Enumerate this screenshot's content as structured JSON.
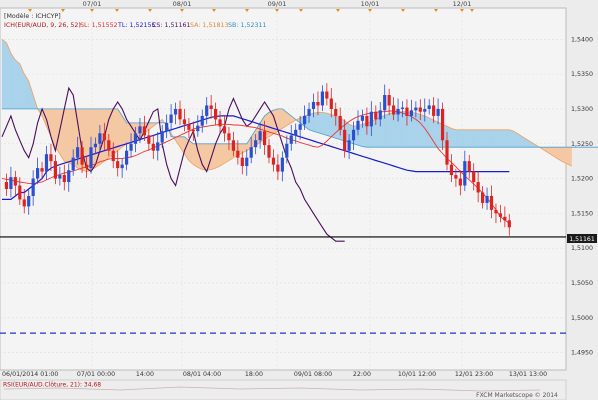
{
  "header": {
    "model_label": "[Modèle : ICHCYP]",
    "indicator_name": "ICH(EUR/AUD, 9, 26, 52)",
    "sl": "SL: 1,51552",
    "tl": "TL: 1,52155",
    "cs": "CS: 1,51161",
    "sa": "SA: 1,51813",
    "sb": "SB: 1,52311"
  },
  "top_dates": [
    "07/01",
    "08/01",
    "09/01",
    "10/01",
    "12/01"
  ],
  "price_ticks": [
    "1,5400",
    "1,5350",
    "1,5300",
    "1,5250",
    "1,5200",
    "1,5150",
    "1,5100",
    "1,5050",
    "1,5000",
    "1,4950"
  ],
  "price_badge": "1,51161",
  "time_ticks": [
    "06/01/2014 01:00",
    "07/01 00:00",
    "14:00",
    "08/01 04:00",
    "18:00",
    "09/01 08:00",
    "22:00",
    "10/01 12:00",
    "12/01 23:00",
    "13/01 13:00"
  ],
  "rsi_label": "RSI(EUR/AUD.Clôture, 21): 34,68",
  "footer": "FXCM Marketscope © 2014",
  "colors": {
    "background": "#ececec",
    "bull_candle": "#2a4fd0",
    "bear_candle": "#dd2222",
    "tenkan": "#ee3333",
    "kijun": "#1a1ad0",
    "chikou": "#4a0f5a",
    "senkou_a": "#f0a060",
    "senkou_b": "#4aa0d0",
    "cloud_bearish": "#f5c8a4",
    "cloud_bullish": "#a9d3ea",
    "support_dashed": "#2233cc",
    "price_line": "#000000"
  },
  "chart_data": {
    "type": "candlestick",
    "symbol": "EUR/AUD",
    "title": "ICH(EUR/AUD, 9, 26, 52)",
    "ylim": [
      1.4925,
      1.5445
    ],
    "x_tick_labels": [
      "06/01/2014 01:00",
      "07/01 00:00",
      "14:00",
      "08/01 04:00",
      "18:00",
      "09/01 08:00",
      "22:00",
      "10/01 12:00",
      "12/01 23:00",
      "13/01 13:00"
    ],
    "current_price": 1.51161,
    "horizontal_lines": [
      {
        "value": 1.51161,
        "style": "solid"
      },
      {
        "value": 1.4978,
        "style": "dashed"
      }
    ],
    "candles_close": [
      1.5195,
      1.5185,
      1.5202,
      1.519,
      1.517,
      1.516,
      1.5175,
      1.52,
      1.5215,
      1.521,
      1.5235,
      1.5225,
      1.52,
      1.5205,
      1.5195,
      1.5212,
      1.523,
      1.5245,
      1.522,
      1.5215,
      1.5245,
      1.525,
      1.5265,
      1.5255,
      1.524,
      1.5225,
      1.5215,
      1.522,
      1.524,
      1.525,
      1.5265,
      1.5275,
      1.5262,
      1.525,
      1.524,
      1.5252,
      1.5268,
      1.528,
      1.5292,
      1.53,
      1.5285,
      1.5278,
      1.527,
      1.5268,
      1.5276,
      1.529,
      1.5305,
      1.53,
      1.5285,
      1.5275,
      1.5265,
      1.5255,
      1.524,
      1.523,
      1.5218,
      1.523,
      1.5245,
      1.5255,
      1.5268,
      1.5248,
      1.523,
      1.522,
      1.521,
      1.523,
      1.525,
      1.5262,
      1.527,
      1.5278,
      1.529,
      1.53,
      1.531,
      1.5305,
      1.5325,
      1.5315,
      1.53,
      1.529,
      1.527,
      1.524,
      1.5255,
      1.527,
      1.5283,
      1.529,
      1.5275,
      1.5296,
      1.5285,
      1.5298,
      1.532,
      1.5305,
      1.5292,
      1.53,
      1.5302,
      1.529,
      1.5298,
      1.5302,
      1.5296,
      1.53,
      1.5305,
      1.529,
      1.53,
      1.5255,
      1.522,
      1.5205,
      1.52,
      1.519,
      1.5225,
      1.521,
      1.5195,
      1.518,
      1.5165,
      1.5175,
      1.5155,
      1.515,
      1.5145,
      1.514,
      1.513
    ],
    "tenkan_sen": [
      1.52,
      1.5199,
      1.5198,
      1.5196,
      1.5195,
      1.5194,
      1.5193,
      1.5193,
      1.5194,
      1.5195,
      1.5198,
      1.5201,
      1.5204,
      1.5206,
      1.5208,
      1.5209,
      1.5211,
      1.5213,
      1.5215,
      1.5217,
      1.5219,
      1.5221,
      1.5224,
      1.5226,
      1.5228,
      1.5229,
      1.5229,
      1.5229,
      1.523,
      1.5231,
      1.5233,
      1.5236,
      1.5239,
      1.5241,
      1.5244,
      1.5247,
      1.525,
      1.5253,
      1.5256,
      1.5259,
      1.5262,
      1.5265,
      1.5268,
      1.5271,
      1.5273,
      1.5274,
      1.5275,
      1.5276,
      1.5277,
      1.5278,
      1.5278,
      1.5278,
      1.5277,
      1.5277,
      1.5276,
      1.5275,
      1.5274,
      1.5273,
      1.5271,
      1.5269,
      1.5267,
      1.5265,
      1.5263,
      1.5261,
      1.5258,
      1.5256,
      1.5254,
      1.5252,
      1.525,
      1.5248,
      1.5246,
      1.5245,
      1.5248,
      1.5254,
      1.526,
      1.5266,
      1.5272,
      1.5277,
      1.5282,
      1.5286,
      1.5289,
      1.5291,
      1.5293,
      1.5294,
      1.5295,
      1.5296,
      1.5296,
      1.5297,
      1.5297,
      1.5296,
      1.5294,
      1.5292,
      1.5289,
      1.5285,
      1.528,
      1.5272,
      1.5263,
      1.5253,
      1.5243,
      1.5236,
      1.5229,
      1.5223,
      1.5217,
      1.521,
      1.5204,
      1.5198,
      1.5192,
      1.5186,
      1.5179,
      1.5172,
      1.5164,
      1.5155,
      1.5145,
      1.514,
      1.5136
    ],
    "kijun_sen": [
      1.517,
      1.517,
      1.517,
      1.5175,
      1.518,
      1.518,
      1.5185,
      1.519,
      1.5195,
      1.52,
      1.521,
      1.5215,
      1.5218,
      1.522,
      1.5222,
      1.5224,
      1.5226,
      1.5228,
      1.523,
      1.5232,
      1.5234,
      1.5236,
      1.5238,
      1.524,
      1.5242,
      1.5244,
      1.5246,
      1.5248,
      1.525,
      1.5252,
      1.5254,
      1.5256,
      1.5258,
      1.526,
      1.5262,
      1.5264,
      1.5266,
      1.5268,
      1.527,
      1.5272,
      1.5274,
      1.5276,
      1.5278,
      1.528,
      1.5282,
      1.5284,
      1.5286,
      1.5288,
      1.5289,
      1.529,
      1.529,
      1.529,
      1.529,
      1.5288,
      1.5286,
      1.5284,
      1.5282,
      1.528,
      1.5278,
      1.5276,
      1.5274,
      1.5272,
      1.527,
      1.5268,
      1.5266,
      1.5264,
      1.5262,
      1.526,
      1.5258,
      1.5256,
      1.5254,
      1.5252,
      1.525,
      1.5248,
      1.5246,
      1.5244,
      1.5242,
      1.524,
      1.5238,
      1.5236,
      1.5234,
      1.5232,
      1.523,
      1.5228,
      1.5226,
      1.5224,
      1.5222,
      1.522,
      1.5218,
      1.5216,
      1.5214,
      1.5212,
      1.5211,
      1.521,
      1.521,
      1.521,
      1.521,
      1.521,
      1.521,
      1.521,
      1.521,
      1.521,
      1.521,
      1.521,
      1.521,
      1.521,
      1.521,
      1.521,
      1.521,
      1.521,
      1.521,
      1.521,
      1.521,
      1.521,
      1.521
    ],
    "chikou_span": [
      1.526,
      1.5275,
      1.529,
      1.527,
      1.5255,
      1.524,
      1.523,
      1.525,
      1.528,
      1.53,
      1.5285,
      1.526,
      1.524,
      1.527,
      1.53,
      1.533,
      1.532,
      1.528,
      1.524,
      1.5215,
      1.521,
      1.522,
      1.524,
      1.526,
      1.5285,
      1.53,
      1.531,
      1.53,
      1.5285,
      1.5275,
      1.5265,
      1.5255,
      1.5268,
      1.5282,
      1.5296,
      1.53,
      1.525,
      1.522,
      1.52,
      1.519,
      1.5215,
      1.524,
      1.5255,
      1.5268,
      1.524,
      1.522,
      1.521,
      1.523,
      1.525,
      1.5265,
      1.5275,
      1.53,
      1.5315,
      1.53,
      1.5285,
      1.5275,
      1.528,
      1.529,
      1.53,
      1.531,
      1.53,
      1.529,
      1.527,
      1.525,
      1.523,
      1.5215,
      1.5195,
      1.5185,
      1.517,
      1.516,
      1.515,
      1.514,
      1.513,
      1.512,
      1.5115,
      1.511,
      1.511,
      1.511
    ],
    "senkou_a": [
      1.54,
      1.5395,
      1.538,
      1.537,
      1.5365,
      1.535,
      1.534,
      1.532,
      1.53,
      1.529,
      1.5275,
      1.526,
      1.5245,
      1.5235,
      1.5225,
      1.5222,
      1.522,
      1.5215,
      1.5212,
      1.521,
      1.5212,
      1.5216,
      1.522,
      1.5225,
      1.523,
      1.5235,
      1.524,
      1.5245,
      1.525,
      1.5252,
      1.5255,
      1.526,
      1.5265,
      1.527,
      1.5275,
      1.528,
      1.5285,
      1.5275,
      1.5265,
      1.5255,
      1.5245,
      1.5235,
      1.5226,
      1.522,
      1.5216,
      1.5213,
      1.5212,
      1.5213,
      1.5215,
      1.5218,
      1.5222,
      1.5226,
      1.523,
      1.5233,
      1.5237,
      1.524,
      1.5244,
      1.5248,
      1.5252,
      1.5256,
      1.526,
      1.5264,
      1.5268,
      1.5272,
      1.5276,
      1.528,
      1.5284,
      1.5287,
      1.529,
      1.5292,
      1.5294,
      1.5295,
      1.5295,
      1.5294,
      1.5292,
      1.529,
      1.5287,
      1.5283,
      1.5278,
      1.5275,
      1.5276,
      1.5278,
      1.528,
      1.5282,
      1.5285,
      1.5288,
      1.5291,
      1.5293,
      1.5295,
      1.5296,
      1.5296,
      1.5296,
      1.5295,
      1.5294,
      1.5292,
      1.529,
      1.5287,
      1.5284,
      1.5281,
      1.5278,
      1.5275,
      1.5272,
      1.527,
      1.527,
      1.527,
      1.527,
      1.527,
      1.527,
      1.527,
      1.527,
      1.527,
      1.527,
      1.527,
      1.527,
      1.527,
      1.5268,
      1.5264,
      1.526,
      1.5256,
      1.5252,
      1.5248,
      1.5244,
      1.524,
      1.5236,
      1.5232,
      1.5228,
      1.5224,
      1.5221,
      1.5218
    ],
    "senkou_b": [
      1.53,
      1.53,
      1.53,
      1.53,
      1.53,
      1.53,
      1.53,
      1.53,
      1.53,
      1.53,
      1.53,
      1.53,
      1.53,
      1.53,
      1.53,
      1.53,
      1.53,
      1.53,
      1.53,
      1.53,
      1.53,
      1.53,
      1.53,
      1.53,
      1.53,
      1.53,
      1.53,
      1.529,
      1.528,
      1.528,
      1.528,
      1.528,
      1.528,
      1.528,
      1.528,
      1.528,
      1.528,
      1.528,
      1.526,
      1.526,
      1.526,
      1.526,
      1.5255,
      1.525,
      1.525,
      1.525,
      1.525,
      1.525,
      1.525,
      1.525,
      1.525,
      1.525,
      1.525,
      1.525,
      1.525,
      1.525,
      1.526,
      1.527,
      1.528,
      1.529,
      1.5295,
      1.5298,
      1.53,
      1.53,
      1.5295,
      1.529,
      1.5285,
      1.528,
      1.5275,
      1.527,
      1.5268,
      1.5266,
      1.5264,
      1.5262,
      1.526,
      1.5258,
      1.5256,
      1.5254,
      1.5252,
      1.525,
      1.5248,
      1.5246,
      1.5245,
      1.5245,
      1.5245,
      1.5245,
      1.5245,
      1.5245,
      1.5245,
      1.5245,
      1.5245,
      1.5245,
      1.5245,
      1.5245,
      1.5245,
      1.5245,
      1.5245,
      1.5245,
      1.5245,
      1.5245,
      1.5245,
      1.5245,
      1.5245,
      1.5245,
      1.5245,
      1.5245,
      1.5245,
      1.5245,
      1.5245,
      1.5245,
      1.5245,
      1.5245,
      1.5245,
      1.5245,
      1.5245,
      1.5245,
      1.5245,
      1.5245,
      1.5245,
      1.5245,
      1.5245,
      1.5245,
      1.5245,
      1.5245,
      1.5245,
      1.5245,
      1.5245,
      1.5245,
      1.5245,
      1.5245,
      1.5245,
      1.5245,
      1.5245,
      1.5245,
      1.5245
    ],
    "rsi_value": 34.68
  }
}
